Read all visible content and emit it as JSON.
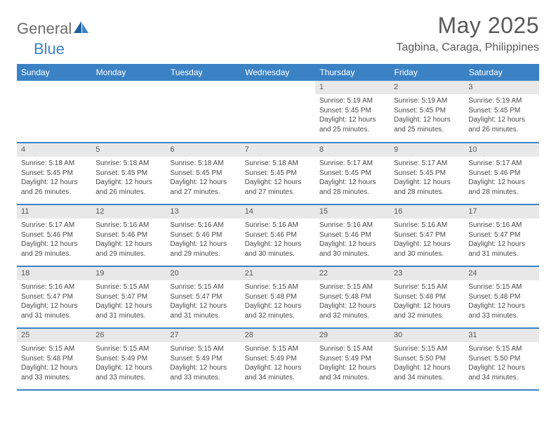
{
  "brand": {
    "word1": "General",
    "word2": "Blue"
  },
  "title": "May 2025",
  "location": "Tagbina, Caraga, Philippines",
  "colors": {
    "header_bg": "#3b82c4",
    "header_text": "#ffffff",
    "daynum_bg": "#e8e8e8",
    "text": "#595959",
    "body_text": "#4a4a4a",
    "row_border": "#3b82c4",
    "page_bg": "#ffffff",
    "logo_gray": "#6b6b6b",
    "logo_blue": "#3b82c4"
  },
  "typography": {
    "title_fontsize": 32,
    "location_fontsize": 16,
    "weekday_fontsize": 12,
    "daynum_fontsize": 11,
    "body_fontsize": 10
  },
  "weekdays": [
    "Sunday",
    "Monday",
    "Tuesday",
    "Wednesday",
    "Thursday",
    "Friday",
    "Saturday"
  ],
  "weeks": [
    [
      {
        "n": "",
        "sr": "",
        "ss": "",
        "dl": ""
      },
      {
        "n": "",
        "sr": "",
        "ss": "",
        "dl": ""
      },
      {
        "n": "",
        "sr": "",
        "ss": "",
        "dl": ""
      },
      {
        "n": "",
        "sr": "",
        "ss": "",
        "dl": ""
      },
      {
        "n": "1",
        "sr": "Sunrise: 5:19 AM",
        "ss": "Sunset: 5:45 PM",
        "dl": "Daylight: 12 hours and 25 minutes."
      },
      {
        "n": "2",
        "sr": "Sunrise: 5:19 AM",
        "ss": "Sunset: 5:45 PM",
        "dl": "Daylight: 12 hours and 25 minutes."
      },
      {
        "n": "3",
        "sr": "Sunrise: 5:19 AM",
        "ss": "Sunset: 5:45 PM",
        "dl": "Daylight: 12 hours and 26 minutes."
      }
    ],
    [
      {
        "n": "4",
        "sr": "Sunrise: 5:18 AM",
        "ss": "Sunset: 5:45 PM",
        "dl": "Daylight: 12 hours and 26 minutes."
      },
      {
        "n": "5",
        "sr": "Sunrise: 5:18 AM",
        "ss": "Sunset: 5:45 PM",
        "dl": "Daylight: 12 hours and 26 minutes."
      },
      {
        "n": "6",
        "sr": "Sunrise: 5:18 AM",
        "ss": "Sunset: 5:45 PM",
        "dl": "Daylight: 12 hours and 27 minutes."
      },
      {
        "n": "7",
        "sr": "Sunrise: 5:18 AM",
        "ss": "Sunset: 5:45 PM",
        "dl": "Daylight: 12 hours and 27 minutes."
      },
      {
        "n": "8",
        "sr": "Sunrise: 5:17 AM",
        "ss": "Sunset: 5:45 PM",
        "dl": "Daylight: 12 hours and 28 minutes."
      },
      {
        "n": "9",
        "sr": "Sunrise: 5:17 AM",
        "ss": "Sunset: 5:45 PM",
        "dl": "Daylight: 12 hours and 28 minutes."
      },
      {
        "n": "10",
        "sr": "Sunrise: 5:17 AM",
        "ss": "Sunset: 5:46 PM",
        "dl": "Daylight: 12 hours and 28 minutes."
      }
    ],
    [
      {
        "n": "11",
        "sr": "Sunrise: 5:17 AM",
        "ss": "Sunset: 5:46 PM",
        "dl": "Daylight: 12 hours and 29 minutes."
      },
      {
        "n": "12",
        "sr": "Sunrise: 5:16 AM",
        "ss": "Sunset: 5:46 PM",
        "dl": "Daylight: 12 hours and 29 minutes."
      },
      {
        "n": "13",
        "sr": "Sunrise: 5:16 AM",
        "ss": "Sunset: 5:46 PM",
        "dl": "Daylight: 12 hours and 29 minutes."
      },
      {
        "n": "14",
        "sr": "Sunrise: 5:16 AM",
        "ss": "Sunset: 5:46 PM",
        "dl": "Daylight: 12 hours and 30 minutes."
      },
      {
        "n": "15",
        "sr": "Sunrise: 5:16 AM",
        "ss": "Sunset: 5:46 PM",
        "dl": "Daylight: 12 hours and 30 minutes."
      },
      {
        "n": "16",
        "sr": "Sunrise: 5:16 AM",
        "ss": "Sunset: 5:47 PM",
        "dl": "Daylight: 12 hours and 30 minutes."
      },
      {
        "n": "17",
        "sr": "Sunrise: 5:16 AM",
        "ss": "Sunset: 5:47 PM",
        "dl": "Daylight: 12 hours and 31 minutes."
      }
    ],
    [
      {
        "n": "18",
        "sr": "Sunrise: 5:16 AM",
        "ss": "Sunset: 5:47 PM",
        "dl": "Daylight: 12 hours and 31 minutes."
      },
      {
        "n": "19",
        "sr": "Sunrise: 5:15 AM",
        "ss": "Sunset: 5:47 PM",
        "dl": "Daylight: 12 hours and 31 minutes."
      },
      {
        "n": "20",
        "sr": "Sunrise: 5:15 AM",
        "ss": "Sunset: 5:47 PM",
        "dl": "Daylight: 12 hours and 31 minutes."
      },
      {
        "n": "21",
        "sr": "Sunrise: 5:15 AM",
        "ss": "Sunset: 5:48 PM",
        "dl": "Daylight: 12 hours and 32 minutes."
      },
      {
        "n": "22",
        "sr": "Sunrise: 5:15 AM",
        "ss": "Sunset: 5:48 PM",
        "dl": "Daylight: 12 hours and 32 minutes."
      },
      {
        "n": "23",
        "sr": "Sunrise: 5:15 AM",
        "ss": "Sunset: 5:48 PM",
        "dl": "Daylight: 12 hours and 32 minutes."
      },
      {
        "n": "24",
        "sr": "Sunrise: 5:15 AM",
        "ss": "Sunset: 5:48 PM",
        "dl": "Daylight: 12 hours and 33 minutes."
      }
    ],
    [
      {
        "n": "25",
        "sr": "Sunrise: 5:15 AM",
        "ss": "Sunset: 5:48 PM",
        "dl": "Daylight: 12 hours and 33 minutes."
      },
      {
        "n": "26",
        "sr": "Sunrise: 5:15 AM",
        "ss": "Sunset: 5:49 PM",
        "dl": "Daylight: 12 hours and 33 minutes."
      },
      {
        "n": "27",
        "sr": "Sunrise: 5:15 AM",
        "ss": "Sunset: 5:49 PM",
        "dl": "Daylight: 12 hours and 33 minutes."
      },
      {
        "n": "28",
        "sr": "Sunrise: 5:15 AM",
        "ss": "Sunset: 5:49 PM",
        "dl": "Daylight: 12 hours and 34 minutes."
      },
      {
        "n": "29",
        "sr": "Sunrise: 5:15 AM",
        "ss": "Sunset: 5:49 PM",
        "dl": "Daylight: 12 hours and 34 minutes."
      },
      {
        "n": "30",
        "sr": "Sunrise: 5:15 AM",
        "ss": "Sunset: 5:50 PM",
        "dl": "Daylight: 12 hours and 34 minutes."
      },
      {
        "n": "31",
        "sr": "Sunrise: 5:15 AM",
        "ss": "Sunset: 5:50 PM",
        "dl": "Daylight: 12 hours and 34 minutes."
      }
    ]
  ]
}
